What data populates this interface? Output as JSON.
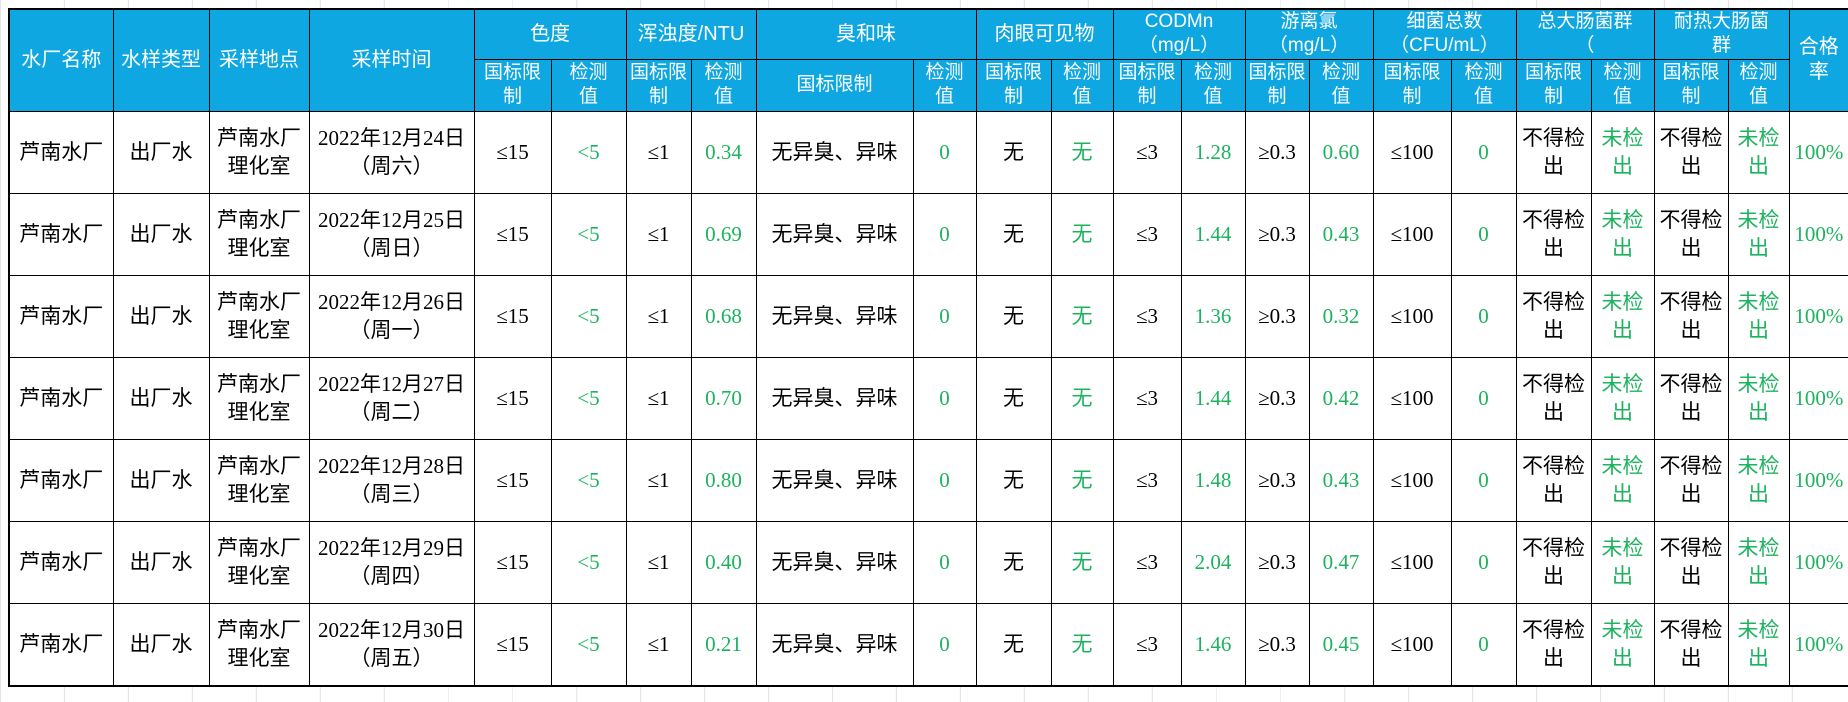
{
  "colors": {
    "header_bg": "#0fa7e1",
    "detected_value_green": "#1cb35e",
    "grid_border": "#000000",
    "header_text": "#ffffff",
    "limit_text": "#000000"
  },
  "table": {
    "headers": {
      "plant": "水厂名称",
      "sample_type": "水样类型",
      "location": "采样地点",
      "time": "采样时间",
      "pass_rate": "合格率",
      "groups": [
        {
          "label": "色度",
          "limit": "国标限\n制",
          "value": "检测\n值"
        },
        {
          "label": "浑浊度/NTU",
          "limit": "国标限\n制",
          "value": "检测\n值"
        },
        {
          "label": "臭和味",
          "limit": "国标限制",
          "value": "检测\n值"
        },
        {
          "label": "肉眼可见物",
          "limit": "国标限\n制",
          "value": "检测\n值"
        },
        {
          "label": "CODMn\n（mg/L）",
          "limit": "国标限\n制",
          "value": "检测\n值"
        },
        {
          "label": "游离氯\n（mg/L）",
          "limit": "国标限\n制",
          "value": "检测\n值"
        },
        {
          "label": "细菌总数\n（CFU/mL）",
          "limit": "国标限\n制",
          "value": "检测\n值"
        },
        {
          "label": "总大肠菌群\n（",
          "limit": "国标限\n制",
          "value": "检测\n值"
        },
        {
          "label": "耐热大肠菌\n群",
          "limit": "国标限\n制",
          "value": "检测\n值"
        }
      ]
    },
    "rows": [
      [
        "芦南水厂",
        "出厂水",
        "芦南水厂\n理化室",
        "2022年12月24日\n（周六）",
        "≤15",
        "<5",
        "≤1",
        "0.34",
        "无异臭、异味",
        "0",
        "无",
        "无",
        "≤3",
        "1.28",
        "≥0.3",
        "0.60",
        "≤100",
        "0",
        "不得检\n出",
        "未检\n出",
        "不得检\n出",
        "未检\n出",
        "100%"
      ],
      [
        "芦南水厂",
        "出厂水",
        "芦南水厂\n理化室",
        "2022年12月25日\n（周日）",
        "≤15",
        "<5",
        "≤1",
        "0.69",
        "无异臭、异味",
        "0",
        "无",
        "无",
        "≤3",
        "1.44",
        "≥0.3",
        "0.43",
        "≤100",
        "0",
        "不得检\n出",
        "未检\n出",
        "不得检\n出",
        "未检\n出",
        "100%"
      ],
      [
        "芦南水厂",
        "出厂水",
        "芦南水厂\n理化室",
        "2022年12月26日\n（周一）",
        "≤15",
        "<5",
        "≤1",
        "0.68",
        "无异臭、异味",
        "0",
        "无",
        "无",
        "≤3",
        "1.36",
        "≥0.3",
        "0.32",
        "≤100",
        "0",
        "不得检\n出",
        "未检\n出",
        "不得检\n出",
        "未检\n出",
        "100%"
      ],
      [
        "芦南水厂",
        "出厂水",
        "芦南水厂\n理化室",
        "2022年12月27日\n（周二）",
        "≤15",
        "<5",
        "≤1",
        "0.70",
        "无异臭、异味",
        "0",
        "无",
        "无",
        "≤3",
        "1.44",
        "≥0.3",
        "0.42",
        "≤100",
        "0",
        "不得检\n出",
        "未检\n出",
        "不得检\n出",
        "未检\n出",
        "100%"
      ],
      [
        "芦南水厂",
        "出厂水",
        "芦南水厂\n理化室",
        "2022年12月28日\n（周三）",
        "≤15",
        "<5",
        "≤1",
        "0.80",
        "无异臭、异味",
        "0",
        "无",
        "无",
        "≤3",
        "1.48",
        "≥0.3",
        "0.43",
        "≤100",
        "0",
        "不得检\n出",
        "未检\n出",
        "不得检\n出",
        "未检\n出",
        "100%"
      ],
      [
        "芦南水厂",
        "出厂水",
        "芦南水厂\n理化室",
        "2022年12月29日\n（周四）",
        "≤15",
        "<5",
        "≤1",
        "0.40",
        "无异臭、异味",
        "0",
        "无",
        "无",
        "≤3",
        "2.04",
        "≥0.3",
        "0.47",
        "≤100",
        "0",
        "不得检\n出",
        "未检\n出",
        "不得检\n出",
        "未检\n出",
        "100%"
      ],
      [
        "芦南水厂",
        "出厂水",
        "芦南水厂\n理化室",
        "2022年12月30日\n（周五）",
        "≤15",
        "<5",
        "≤1",
        "0.21",
        "无异臭、异味",
        "0",
        "无",
        "无",
        "≤3",
        "1.46",
        "≥0.3",
        "0.45",
        "≤100",
        "0",
        "不得检\n出",
        "未检\n出",
        "不得检\n出",
        "未检\n出",
        "100%"
      ]
    ]
  }
}
